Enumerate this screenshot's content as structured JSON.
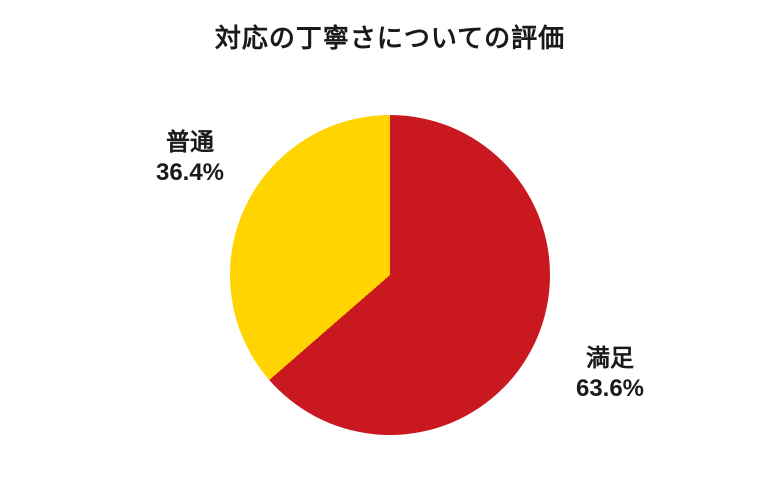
{
  "page": {
    "background": "#ffffff",
    "text_color": "#1a1a1a"
  },
  "chart_data": {
    "type": "pie",
    "title": "対応の丁寧さについての評価",
    "start_angle": "top",
    "direction": "clockwise",
    "legend_position": "none",
    "labels_placement": "outside",
    "slices": [
      {
        "label": "満足",
        "value": 63.6,
        "pct_label": "63.6%",
        "color": "#C9181F"
      },
      {
        "label": "普通",
        "value": 36.4,
        "pct_label": "36.4%",
        "color": "#FFD400"
      }
    ]
  }
}
